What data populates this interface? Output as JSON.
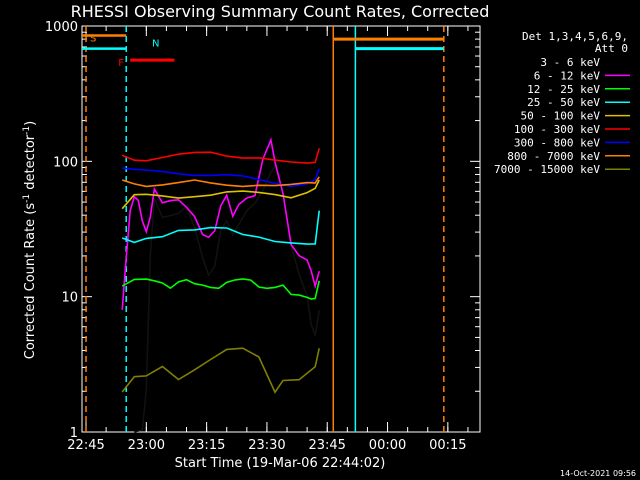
{
  "chart_data": {
    "type": "line",
    "title": "RHESSI Observing Summary Count Rates, Corrected",
    "xlabel": "Start Time (19-Mar-06 22:44:02)",
    "ylabel": "Corrected Count Rate (s",
    "ylabel_sup1": "-1",
    "ylabel_mid": " detector",
    "ylabel_sup2": "-1",
    "ylabel_end": ")",
    "yscale": "log",
    "ylim": [
      1,
      1000
    ],
    "x_unit": "minutes since 22:44:02",
    "xlim": [
      0,
      99
    ],
    "x_ticks": [
      {
        "label": "22:45",
        "x": 1
      },
      {
        "label": "23:00",
        "x": 16
      },
      {
        "label": "23:15",
        "x": 31
      },
      {
        "label": "23:30",
        "x": 46
      },
      {
        "label": "23:45",
        "x": 61
      },
      {
        "label": "00:00",
        "x": 76
      },
      {
        "label": "00:15",
        "x": 91
      }
    ],
    "y_ticks": [
      {
        "label": "1",
        "v": 1
      },
      {
        "label": "10",
        "v": 10
      },
      {
        "label": "100",
        "v": 100
      },
      {
        "label": "1000",
        "v": 1000
      }
    ],
    "legend": {
      "header1": "Det 1,3,4,5,6,9,",
      "header2": "Att 0",
      "placement": "right"
    },
    "series": [
      {
        "name": "3 - 6 keV",
        "color": "#000000",
        "x": [
          13,
          15,
          16,
          17,
          18,
          20,
          22,
          24,
          26,
          28,
          30,
          31.5,
          33,
          34.5,
          36,
          37.5,
          39,
          41,
          43,
          45,
          47,
          48,
          50,
          52,
          54,
          56,
          57,
          58,
          59
        ],
        "y": [
          1,
          1,
          2,
          20,
          55,
          40,
          40,
          40,
          45,
          32,
          20,
          15,
          17,
          30,
          35,
          28,
          35,
          45,
          50,
          60,
          80,
          90,
          60,
          25,
          15,
          10,
          6,
          5,
          8
        ]
      },
      {
        "name": "6 - 12 keV",
        "color": "#ff00ff",
        "x": [
          10,
          11,
          12,
          13,
          14,
          15,
          16,
          17,
          18,
          20,
          22,
          24,
          26,
          28,
          30,
          31.5,
          33,
          34.5,
          36,
          37.5,
          39,
          41,
          43,
          45,
          47,
          48,
          50,
          52,
          54,
          56,
          57,
          58,
          59
        ],
        "y": [
          8,
          20,
          45,
          55,
          50,
          35,
          30,
          40,
          65,
          50,
          50,
          50,
          45,
          40,
          30,
          28,
          30,
          45,
          55,
          40,
          50,
          55,
          55,
          100,
          140,
          100,
          60,
          25,
          20,
          18,
          15,
          12,
          16
        ]
      },
      {
        "name": "12 - 25 keV",
        "color": "#00ff00",
        "x": [
          10,
          13,
          16,
          18,
          20,
          22,
          24,
          26,
          28,
          30,
          32,
          34,
          36,
          38,
          40,
          42,
          44,
          46,
          48,
          50,
          52,
          54,
          56,
          57,
          58,
          59
        ],
        "y": [
          12,
          13,
          13,
          13,
          13,
          12,
          13,
          13,
          12,
          12,
          12,
          12,
          13,
          13,
          13,
          13,
          12,
          12,
          12,
          12,
          10,
          10,
          10,
          10,
          10,
          13
        ]
      },
      {
        "name": "25 - 50 keV",
        "color": "#00ffff",
        "x": [
          10,
          13,
          16,
          20,
          24,
          28,
          32,
          36,
          40,
          44,
          48,
          52,
          56,
          58,
          59
        ],
        "y": [
          27,
          26,
          28,
          28,
          30,
          30,
          32,
          33,
          30,
          28,
          25,
          24,
          24,
          25,
          45
        ]
      },
      {
        "name": "50 - 100 keV",
        "color": "#e0c000",
        "x": [
          10,
          13,
          16,
          20,
          24,
          28,
          32,
          36,
          40,
          44,
          48,
          52,
          56,
          58,
          59
        ],
        "y": [
          45,
          55,
          55,
          55,
          55,
          57,
          57,
          58,
          58,
          58,
          58,
          56,
          60,
          62,
          70
        ]
      },
      {
        "name": "100 - 300 keV",
        "color": "#ff0000",
        "x": [
          10,
          13,
          16,
          20,
          24,
          28,
          32,
          36,
          40,
          44,
          48,
          52,
          56,
          58,
          59
        ],
        "y": [
          110,
          105,
          105,
          108,
          110,
          112,
          115,
          112,
          110,
          108,
          100,
          95,
          95,
          100,
          130
        ]
      },
      {
        "name": "300 - 800 keV",
        "color": "#0000ff",
        "x": [
          10,
          13,
          16,
          20,
          24,
          28,
          32,
          36,
          40,
          44,
          48,
          52,
          56,
          58,
          59
        ],
        "y": [
          90,
          85,
          83,
          83,
          83,
          82,
          80,
          78,
          75,
          72,
          70,
          68,
          70,
          72,
          85
        ]
      },
      {
        "name": "800 - 7000 keV",
        "color": "#ff8000",
        "x": [
          10,
          13,
          16,
          20,
          24,
          28,
          32,
          36,
          40,
          44,
          48,
          52,
          56,
          58,
          59
        ],
        "y": [
          72,
          70,
          68,
          68,
          68,
          70,
          68,
          68,
          68,
          68,
          65,
          65,
          68,
          70,
          80
        ]
      },
      {
        "name": "7000 - 15000 keV",
        "color": "#808000",
        "x": [
          10,
          13,
          16,
          20,
          24,
          28,
          32,
          36,
          40,
          44,
          48,
          50,
          54,
          58,
          59
        ],
        "y": [
          2,
          2.5,
          2.5,
          3,
          2.5,
          3,
          3.5,
          4,
          4,
          3.5,
          2,
          2.5,
          2.5,
          3,
          4
        ]
      }
    ],
    "flags": [
      {
        "label": "S",
        "color": "#ff8000",
        "x_start": 0,
        "x_end": 11,
        "y": 850
      },
      {
        "label": "N",
        "color": "#00ffff",
        "x_start": 0,
        "x_end": 11,
        "y": 680
      },
      {
        "label": "F",
        "color": "#ff0000",
        "x_start": 12,
        "x_end": 23,
        "y": 560
      }
    ],
    "vlines": [
      {
        "x": 1,
        "color": "#ff8000",
        "dash": true
      },
      {
        "x": 11,
        "color": "#00ffff",
        "dash": true
      },
      {
        "x": 62.5,
        "color": "#ff8000",
        "dash": false
      },
      {
        "x": 68,
        "color": "#00ffff",
        "dash": false
      },
      {
        "x": 90,
        "color": "#ff8000",
        "dash": true
      }
    ],
    "right_segments": [
      {
        "color": "#ff8000",
        "x_start": 62.5,
        "x_end": 90,
        "y": 800
      },
      {
        "color": "#00ffff",
        "x_start": 68,
        "x_end": 90,
        "y": 680
      }
    ],
    "footer_timestamp": "14-Oct-2021 09:56"
  }
}
